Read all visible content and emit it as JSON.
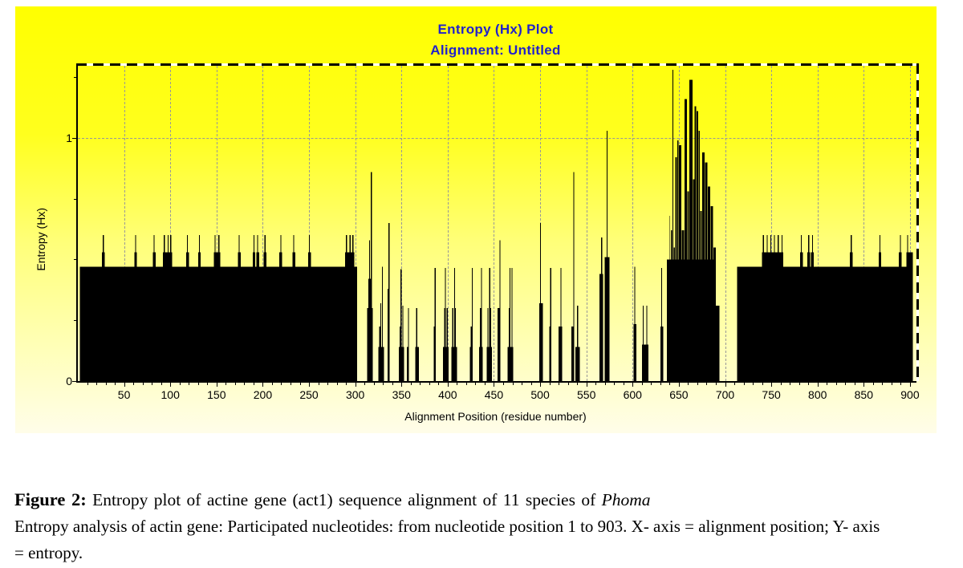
{
  "figure": {
    "title_line1": "Entropy (Hx) Plot",
    "title_line2": "Alignment: Untitled"
  },
  "colors": {
    "title_text": "#2222cb",
    "grid": "#989898",
    "bars": "#000000",
    "panel_gradient_top": "#ffff00",
    "panel_gradient_bottom": "#fffde9",
    "axis": "#000000"
  },
  "chart_data": {
    "type": "bar",
    "title": "Entropy (Hx) Plot",
    "subtitle": "Alignment: Untitled",
    "xlabel": "Alignment Position (residue number)",
    "ylabel": "Entropy (Hx)",
    "xlim": [
      0,
      907
    ],
    "ylim": [
      0,
      1.297
    ],
    "x_major_ticks": [
      50,
      100,
      150,
      200,
      250,
      300,
      350,
      400,
      450,
      500,
      550,
      600,
      650,
      700,
      750,
      800,
      850,
      900
    ],
    "x_minor_tick_step": 10,
    "y_major_ticks": [
      0,
      1
    ],
    "y_minor_ticks": [
      0.25,
      0.5,
      0.75,
      1.25
    ],
    "grid_style": "dashed",
    "legend": null,
    "series_note": "Per-position entropy (Hx) of an 11-sequence actin gene alignment, positions 1-903; encoded below as [startPos, endPos, entropy] bar segments",
    "segments": [
      [
        2,
        302,
        0.47
      ],
      [
        26,
        29,
        0.53
      ],
      [
        27,
        28,
        0.6
      ],
      [
        61,
        64,
        0.53
      ],
      [
        62,
        63,
        0.6
      ],
      [
        81,
        84,
        0.53
      ],
      [
        82,
        83,
        0.6
      ],
      [
        92,
        102,
        0.53
      ],
      [
        93,
        94,
        0.6
      ],
      [
        97,
        98,
        0.6
      ],
      [
        100,
        101,
        0.6
      ],
      [
        117,
        120,
        0.53
      ],
      [
        118,
        119,
        0.6
      ],
      [
        130,
        133,
        0.53
      ],
      [
        131,
        132,
        0.6
      ],
      [
        147,
        154,
        0.53
      ],
      [
        148,
        149,
        0.6
      ],
      [
        152,
        153,
        0.6
      ],
      [
        173,
        176,
        0.53
      ],
      [
        174,
        175,
        0.6
      ],
      [
        189,
        192,
        0.53
      ],
      [
        190,
        191,
        0.6
      ],
      [
        193,
        196,
        0.53
      ],
      [
        194,
        195,
        0.6
      ],
      [
        201,
        204,
        0.53
      ],
      [
        202,
        203,
        0.6
      ],
      [
        218,
        221,
        0.53
      ],
      [
        219,
        220,
        0.6
      ],
      [
        232,
        235,
        0.53
      ],
      [
        233,
        234,
        0.6
      ],
      [
        249,
        252,
        0.53
      ],
      [
        250,
        251,
        0.6
      ],
      [
        289,
        299,
        0.53
      ],
      [
        290,
        291,
        0.6
      ],
      [
        294,
        295,
        0.6
      ],
      [
        297,
        298,
        0.6
      ],
      [
        313,
        319,
        0.3
      ],
      [
        314,
        317,
        0.42
      ],
      [
        315,
        316,
        0.58
      ],
      [
        317,
        318,
        0.86
      ],
      [
        325,
        331,
        0.14
      ],
      [
        326,
        328,
        0.225
      ],
      [
        327,
        328,
        0.32
      ],
      [
        329,
        330,
        0.47
      ],
      [
        335,
        337,
        0.38
      ],
      [
        336,
        337,
        0.65
      ],
      [
        347,
        353,
        0.14
      ],
      [
        348,
        350,
        0.225
      ],
      [
        349,
        350,
        0.46
      ],
      [
        351,
        352,
        0.31
      ],
      [
        356,
        358,
        0.14
      ],
      [
        357,
        358,
        0.3
      ],
      [
        365,
        369,
        0.14
      ],
      [
        366,
        367,
        0.3
      ],
      [
        385,
        387,
        0.225
      ],
      [
        386,
        387,
        0.465
      ],
      [
        395,
        401,
        0.14
      ],
      [
        396,
        397,
        0.3
      ],
      [
        397,
        398,
        0.465
      ],
      [
        399,
        400,
        0.3
      ],
      [
        404,
        410,
        0.14
      ],
      [
        405,
        406,
        0.3
      ],
      [
        407,
        408,
        0.465
      ],
      [
        408,
        409,
        0.3
      ],
      [
        424,
        427,
        0.14
      ],
      [
        425,
        426,
        0.225
      ],
      [
        426,
        427,
        0.465
      ],
      [
        434,
        438,
        0.14
      ],
      [
        435,
        436,
        0.3
      ],
      [
        436,
        437,
        0.465
      ],
      [
        442,
        448,
        0.14
      ],
      [
        443,
        444,
        0.3
      ],
      [
        445,
        446,
        0.465
      ],
      [
        446,
        447,
        0.3
      ],
      [
        454,
        457,
        0.3
      ],
      [
        456,
        457,
        0.58
      ],
      [
        465,
        471,
        0.14
      ],
      [
        466,
        467,
        0.3
      ],
      [
        467,
        468,
        0.465
      ],
      [
        469,
        470,
        0.465
      ],
      [
        499,
        503,
        0.32
      ],
      [
        500,
        501,
        0.65
      ],
      [
        510,
        512,
        0.225
      ],
      [
        511,
        512,
        0.465
      ],
      [
        520,
        524,
        0.225
      ],
      [
        522,
        523,
        0.465
      ],
      [
        534,
        537,
        0.225
      ],
      [
        536,
        537,
        0.86
      ],
      [
        538,
        543,
        0.14
      ],
      [
        540,
        541,
        0.31
      ],
      [
        564,
        568,
        0.44
      ],
      [
        566,
        567,
        0.59
      ],
      [
        570,
        575,
        0.51
      ],
      [
        572,
        573,
        1.03
      ],
      [
        601,
        604,
        0.235
      ],
      [
        602,
        603,
        0.47
      ],
      [
        610,
        617,
        0.15
      ],
      [
        611,
        612,
        0.31
      ],
      [
        615,
        616,
        0.31
      ],
      [
        630,
        633,
        0.225
      ],
      [
        631,
        632,
        0.465
      ],
      [
        637,
        690,
        0.5
      ],
      [
        640,
        640.6,
        0.68
      ],
      [
        641.4,
        642.8,
        0.62
      ],
      [
        643.2,
        644,
        1.28
      ],
      [
        644.6,
        645.8,
        0.55
      ],
      [
        646.2,
        647.8,
        0.92
      ],
      [
        648.2,
        649.8,
        0.99
      ],
      [
        650.2,
        652.8,
        0.97
      ],
      [
        653.2,
        655.8,
        0.62
      ],
      [
        656.2,
        658.8,
        1.16
      ],
      [
        659.2,
        660.8,
        0.78
      ],
      [
        661.2,
        664.8,
        1.24
      ],
      [
        665.2,
        666.8,
        0.83
      ],
      [
        667.2,
        668.8,
        1.13
      ],
      [
        669.2,
        670.8,
        1.11
      ],
      [
        671.2,
        672.8,
        1.03
      ],
      [
        673.2,
        674.8,
        0.7
      ],
      [
        675.2,
        677.8,
        0.94
      ],
      [
        678.2,
        680.8,
        0.9
      ],
      [
        681.2,
        683.8,
        0.8
      ],
      [
        684.2,
        686.8,
        0.72
      ],
      [
        687.2,
        689.8,
        0.55
      ],
      [
        690,
        694,
        0.31
      ],
      [
        713,
        903,
        0.47
      ],
      [
        740,
        763,
        0.53
      ],
      [
        741,
        742,
        0.6
      ],
      [
        745,
        746,
        0.6
      ],
      [
        749,
        750,
        0.6
      ],
      [
        753,
        754,
        0.6
      ],
      [
        757,
        758,
        0.6
      ],
      [
        761,
        762,
        0.6
      ],
      [
        781,
        784,
        0.53
      ],
      [
        782,
        783,
        0.6
      ],
      [
        789,
        792,
        0.53
      ],
      [
        790,
        791,
        0.6
      ],
      [
        793,
        796,
        0.53
      ],
      [
        794,
        795,
        0.6
      ],
      [
        835,
        838,
        0.53
      ],
      [
        836,
        837,
        0.6
      ],
      [
        866,
        869,
        0.53
      ],
      [
        867,
        868,
        0.6
      ],
      [
        888,
        891,
        0.53
      ],
      [
        889,
        890,
        0.6
      ],
      [
        896,
        899,
        0.53
      ],
      [
        897,
        898,
        0.6
      ],
      [
        899,
        903,
        0.53
      ]
    ]
  },
  "caption": {
    "label": "Figure 2:",
    "line1": " Entropy plot of actine gene (act1) sequence alignment of 11 species of ",
    "line1_species": "Phoma",
    "line2": "Entropy analysis of actin gene: Participated nucleotides: from nucleotide position 1 to 903. X- axis = alignment position; Y- axis",
    "line3": "= entropy."
  }
}
